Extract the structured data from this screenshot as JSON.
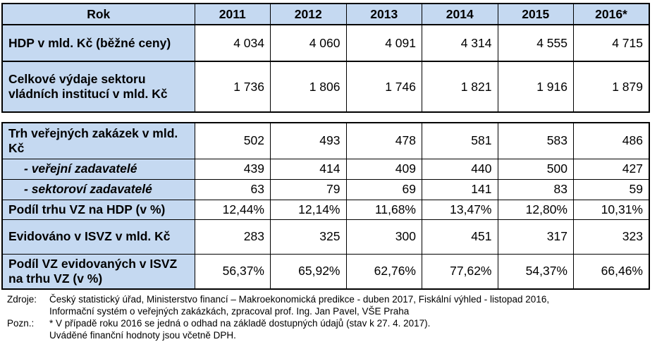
{
  "header": {
    "label": "Rok",
    "years": [
      "2011",
      "2012",
      "2013",
      "2014",
      "2015",
      "2016*"
    ]
  },
  "top_rows": [
    {
      "label": "HDP v mld. Kč (běžné ceny)",
      "values": [
        "4 034",
        "4 060",
        "4 091",
        "4 314",
        "4 555",
        "4 715"
      ],
      "italic": false
    },
    {
      "label": "Celkové výdaje sektoru vládních institucí v mld. Kč",
      "values": [
        "1 736",
        "1 806",
        "1 746",
        "1 821",
        "1 916",
        "1 879"
      ],
      "italic": false
    }
  ],
  "bottom_rows": [
    {
      "label": "Trh veřejných zakázek v mld. Kč",
      "values": [
        "502",
        "493",
        "478",
        "581",
        "583",
        "486"
      ],
      "italic": false
    },
    {
      "label": "- veřejní zadavatelé",
      "values": [
        "439",
        "414",
        "409",
        "440",
        "500",
        "427"
      ],
      "italic": true
    },
    {
      "label": "- sektoroví zadavatelé",
      "values": [
        "63",
        "79",
        "69",
        "141",
        "83",
        "59"
      ],
      "italic": true
    },
    {
      "label": "Podíl trhu VZ na HDP (v %)",
      "values": [
        "12,44%",
        "12,14%",
        "11,68%",
        "13,47%",
        "12,80%",
        "10,31%"
      ],
      "italic": false
    },
    {
      "label": "Evidováno v ISVZ v mld. Kč",
      "values": [
        "283",
        "325",
        "300",
        "451",
        "317",
        "323"
      ],
      "italic": false
    },
    {
      "label": "Podíl VZ evidovaných v ISVZ na trhu VZ (v %)",
      "values": [
        "56,37%",
        "65,92%",
        "62,76%",
        "77,62%",
        "54,37%",
        "66,46%"
      ],
      "italic": false
    }
  ],
  "notes": {
    "sources_label": "Zdroje:",
    "sources_line1": "Český statistický úřad, Ministerstvo financí – Makroekonomická predikce - duben 2017, Fiskální výhled - listopad 2016,",
    "sources_line2": "Informační systém o veřejných zakázkách, zpracoval prof. Ing. Jan Pavel, VŠE Praha",
    "remark_label": "Pozn.:",
    "remark_line1": "* V případě roku 2016 se jedná o odhad na základě dostupných údajů (stav k 27. 4. 2017).",
    "remark_line2": "Uváděné finanční hodnoty jsou včetně DPH."
  }
}
